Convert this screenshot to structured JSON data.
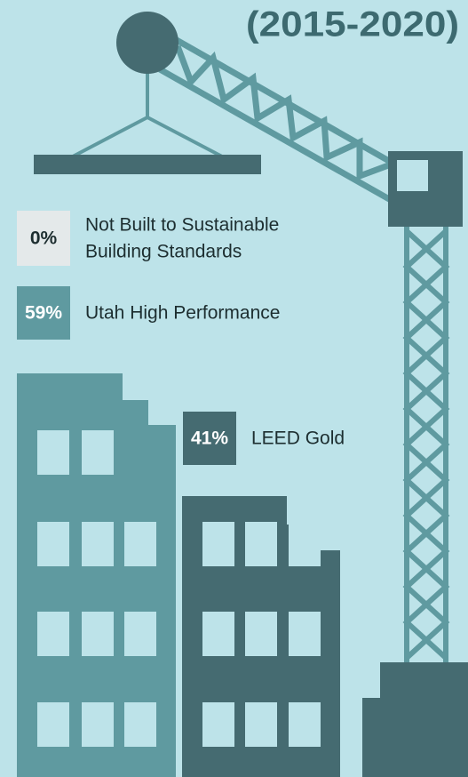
{
  "header": {
    "title": "(2015-2020)"
  },
  "legend": [
    {
      "value": "0%",
      "label_lines": [
        "Not Built to Sustainable",
        "Building Standards"
      ]
    },
    {
      "value": "59%",
      "label_lines": [
        "Utah High Performance"
      ]
    },
    {
      "value": "41%",
      "label_lines": [
        "LEED Gold"
      ]
    }
  ]
}
